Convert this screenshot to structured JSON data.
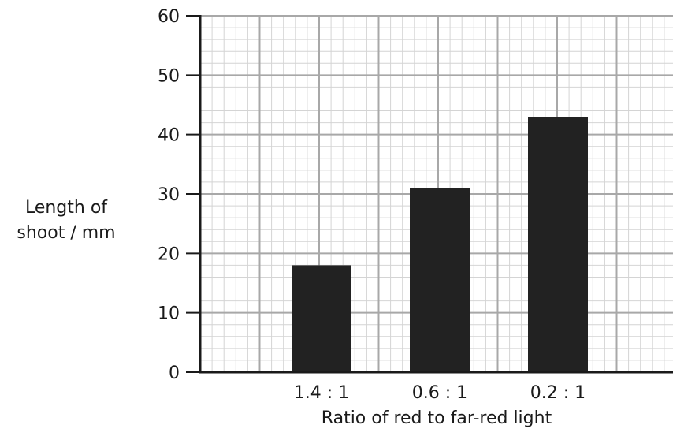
{
  "chart_data": {
    "type": "bar",
    "title": "",
    "categories": [
      "1.4 : 1",
      "0.6 : 1",
      "0.2 : 1"
    ],
    "values": [
      18,
      31,
      43
    ],
    "xlabel": "Ratio of red to far-red light",
    "ylabel": [
      "Length of",
      "shoot / mm"
    ],
    "ylim": [
      0,
      60
    ],
    "yticks": [
      "0",
      "10",
      "20",
      "30",
      "40",
      "50",
      "60"
    ],
    "grid": true,
    "bar_color": "#222222"
  }
}
